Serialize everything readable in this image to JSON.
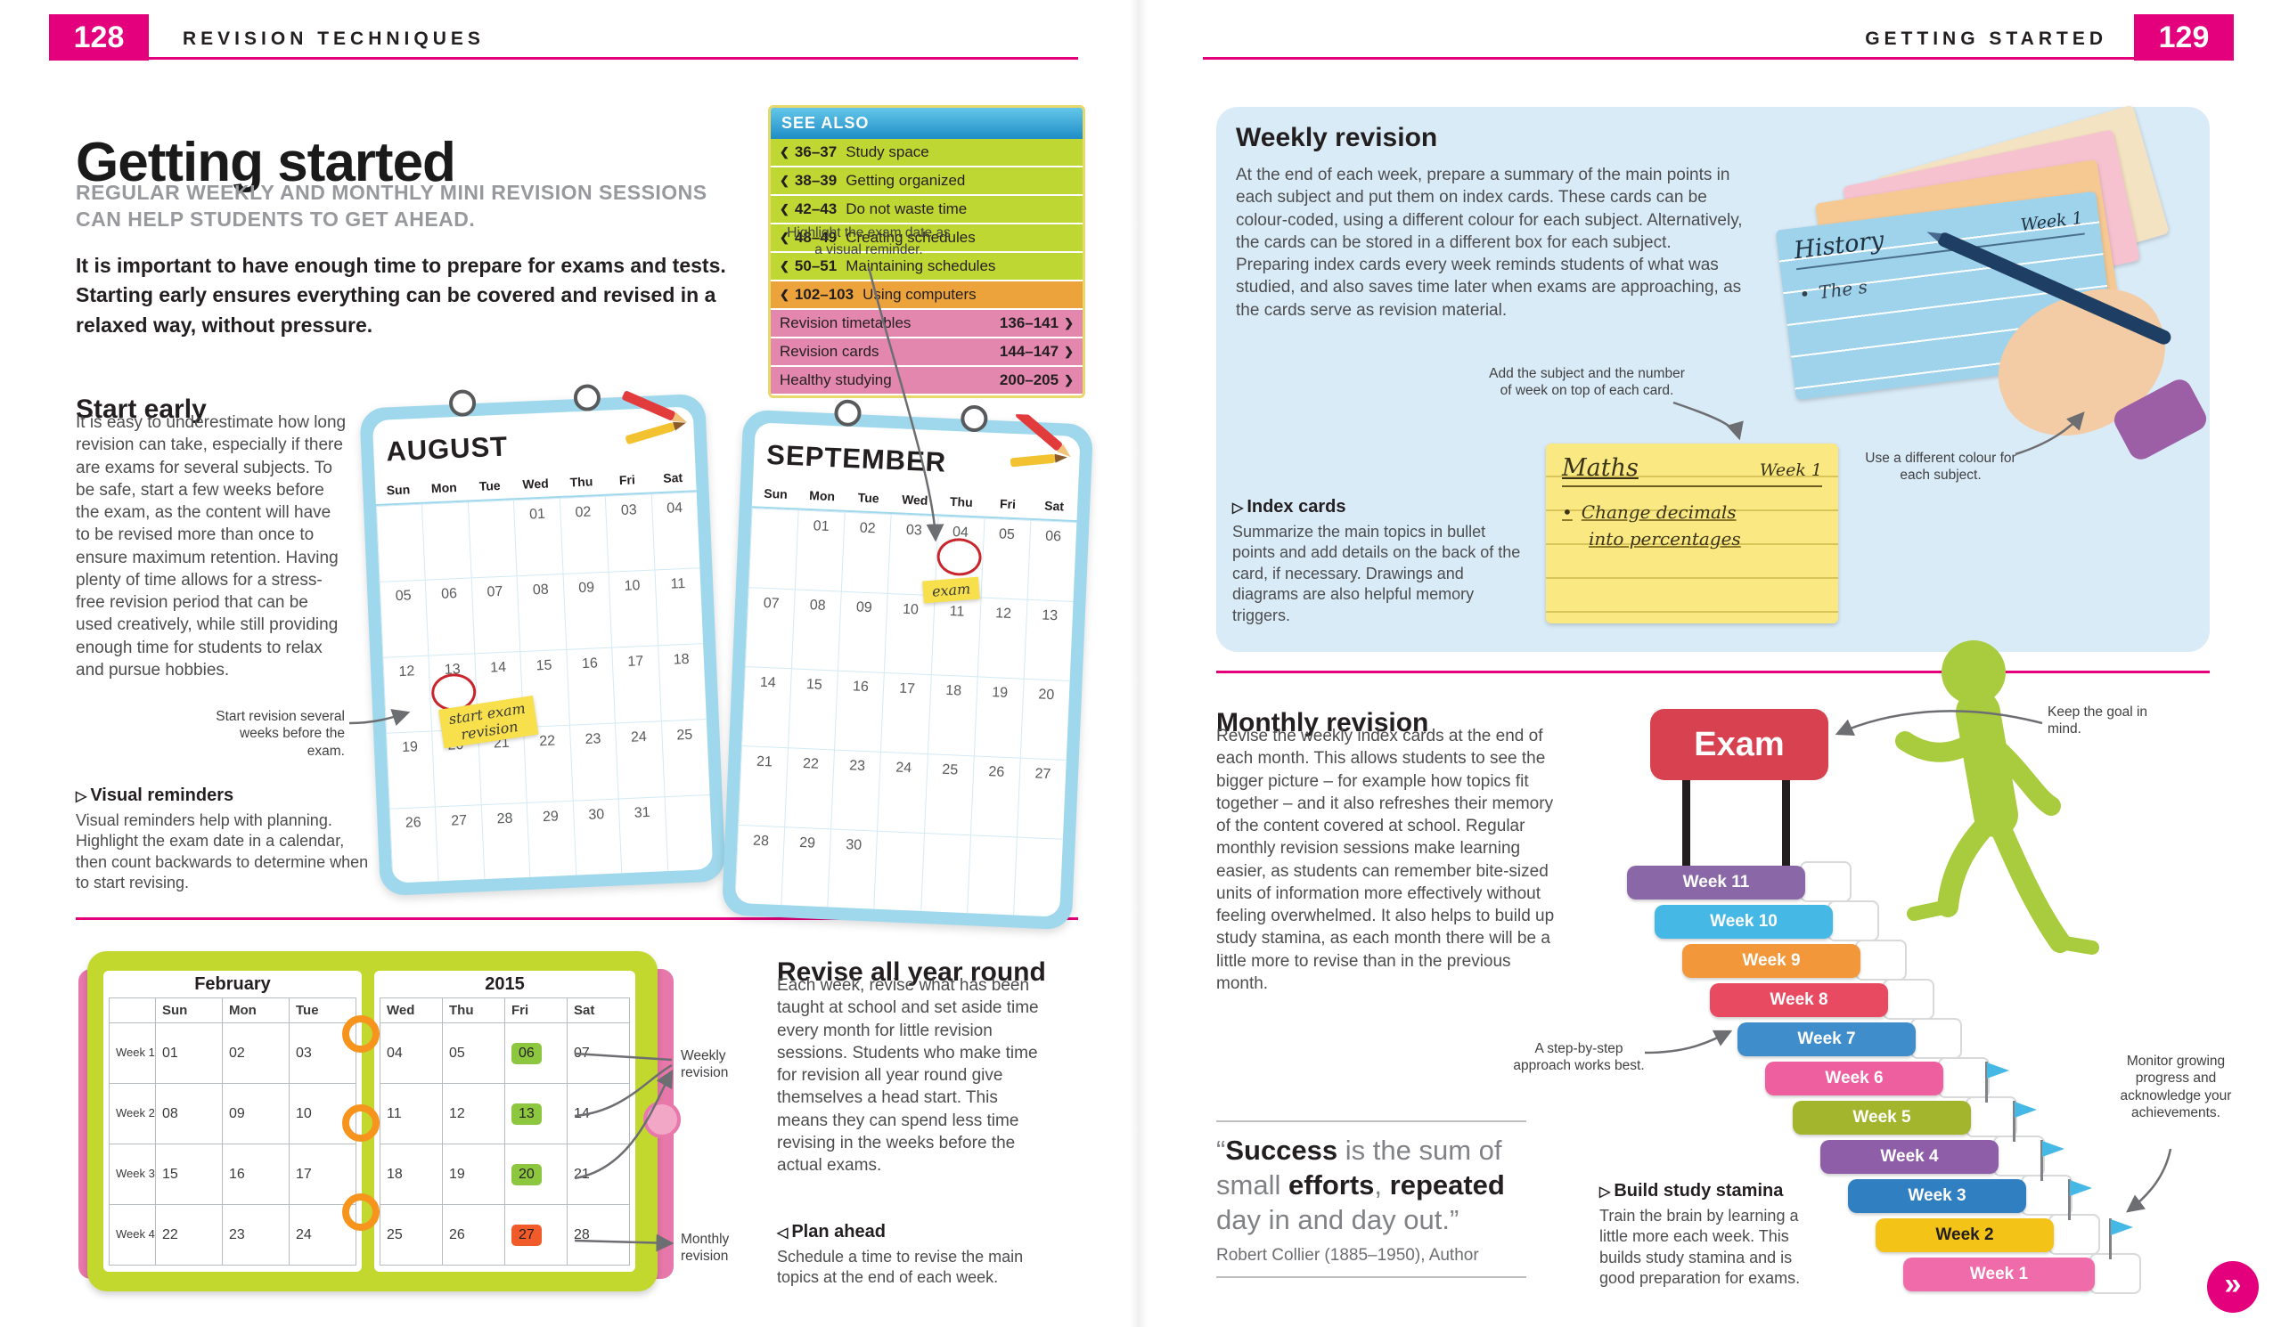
{
  "colors": {
    "accent_pink": "#e4007c",
    "see_also_green": "#bfd732",
    "see_also_orange": "#eda33c",
    "see_also_pink": "#e387ae",
    "calendar_blue": "#9fd8ec",
    "panel_blue": "#d9ebf7",
    "note_yellow": "#f7e04b",
    "weekly_highlight_green": "#8dc63f",
    "monthly_highlight_orange": "#f15a29",
    "exam_red": "#d8414f",
    "figure_green": "#a8cc3d",
    "flag_blue": "#45b8e6"
  },
  "header": {
    "left_page_number": "128",
    "left_section": "REVISION TECHNIQUES",
    "right_section": "GETTING STARTED",
    "right_page_number": "129"
  },
  "left_page": {
    "title": "Getting started",
    "standfirst": "REGULAR WEEKLY AND MONTHLY MINI REVISION SESSIONS CAN HELP STUDENTS TO GET AHEAD.",
    "intro": "It is important to have enough time to prepare for exams and tests. Starting early ensures everything can be covered and revised in a relaxed way, without pressure.",
    "see_also": {
      "title": "SEE ALSO",
      "back_chevron": "❮",
      "forward_chevron": "❯",
      "back_links": [
        {
          "pages": "36–37",
          "label": "Study space"
        },
        {
          "pages": "38–39",
          "label": "Getting organized"
        },
        {
          "pages": "42–43",
          "label": "Do not waste time"
        },
        {
          "pages": "48–49",
          "label": "Creating schedules"
        },
        {
          "pages": "50–51",
          "label": "Maintaining schedules"
        },
        {
          "pages": "102–103",
          "label": "Using computers",
          "color": "#eda33c"
        }
      ],
      "forward_links": [
        {
          "label": "Revision timetables",
          "pages": "136–141"
        },
        {
          "label": "Revision cards",
          "pages": "144–147"
        },
        {
          "label": "Healthy studying",
          "pages": "200–205"
        }
      ]
    },
    "start_early": {
      "heading": "Start early",
      "body": "It is easy to underestimate how long revision can take, especially if there are exams for several subjects. To be safe, start a few weeks before the exam, as the content will have to be revised more than once to ensure maximum retention. Having plenty of time allows for a stress-free revision period that can be used creatively, while still providing enough time for students to relax and pursue hobbies."
    },
    "calendar_annotations": {
      "highlight_callout": "Highlight the exam date as a visual reminder.",
      "start_revision_callout": "Start revision several weeks before the exam.",
      "august_note": "start exam\nrevision",
      "september_note": "exam"
    },
    "calendars": [
      {
        "month": "AUGUST",
        "weekdays": [
          "Sun",
          "Mon",
          "Tue",
          "Wed",
          "Thu",
          "Fri",
          "Sat"
        ],
        "weeks": [
          [
            "",
            "",
            "",
            "01",
            "02",
            "03",
            "04"
          ],
          [
            "05",
            "06",
            "07",
            "08",
            "09",
            "10",
            "11"
          ],
          [
            "12",
            "13",
            "14",
            "15",
            "16",
            "17",
            "18"
          ],
          [
            "19",
            "20",
            "21",
            "22",
            "23",
            "24",
            "25"
          ],
          [
            "26",
            "27",
            "28",
            "29",
            "30",
            "31",
            ""
          ]
        ],
        "circled": "13"
      },
      {
        "month": "SEPTEMBER",
        "weekdays": [
          "Sun",
          "Mon",
          "Tue",
          "Wed",
          "Thu",
          "Fri",
          "Sat"
        ],
        "weeks": [
          [
            "",
            "01",
            "02",
            "03",
            "04",
            "05",
            "06"
          ],
          [
            "07",
            "08",
            "09",
            "10",
            "11",
            "12",
            "13"
          ],
          [
            "14",
            "15",
            "16",
            "17",
            "18",
            "19",
            "20"
          ],
          [
            "21",
            "22",
            "23",
            "24",
            "25",
            "26",
            "27"
          ],
          [
            "28",
            "29",
            "30",
            "",
            "",
            "",
            ""
          ]
        ],
        "circled": "04"
      }
    ],
    "visual_reminders": {
      "marker": "▷",
      "heading": "Visual reminders",
      "body": "Visual reminders help with planning. Highlight the exam date in a calendar, then count backwards to determine when to start revising."
    },
    "planner": {
      "left_title": "February",
      "right_title": "2015",
      "left_columns": [
        "Sun",
        "Mon",
        "Tue"
      ],
      "right_columns": [
        "Wed",
        "Thu",
        "Fri",
        "Sat"
      ],
      "rows": [
        {
          "week": "Week 1",
          "left": [
            "01",
            "02",
            "03"
          ],
          "right": [
            "04",
            "05",
            "06",
            "07"
          ]
        },
        {
          "week": "Week 2",
          "left": [
            "08",
            "09",
            "10"
          ],
          "right": [
            "11",
            "12",
            "13",
            "14"
          ]
        },
        {
          "week": "Week 3",
          "left": [
            "15",
            "16",
            "17"
          ],
          "right": [
            "18",
            "19",
            "20",
            "21"
          ]
        },
        {
          "week": "Week 4",
          "left": [
            "22",
            "23",
            "24"
          ],
          "right": [
            "25",
            "26",
            "27",
            "28"
          ]
        }
      ],
      "weekly_highlights": [
        "06",
        "13",
        "20"
      ],
      "monthly_highlight": "27",
      "weekly_callout": "Weekly revision",
      "monthly_callout": "Monthly revision"
    },
    "revise_all_year": {
      "heading": "Revise all year round",
      "body": "Each week, revise what has been taught at school and set aside time every month for little revision sessions. Students who make time for revision all year round give themselves a head start. This means they can spend less time revising in the weeks before the actual exams."
    },
    "plan_ahead": {
      "marker": "◁",
      "heading": "Plan ahead",
      "body": "Schedule a time to revise the main topics at the end of each week."
    }
  },
  "right_page": {
    "weekly_revision": {
      "heading": "Weekly revision",
      "body": "At the end of each week, prepare a summary of the main points in each subject and put them on index cards. These cards can be colour-coded, using a different colour for each subject. Alternatively, the cards can be stored in a different box for each subject. Preparing index cards every week reminds students of what was studied, and also saves time later when exams are approaching, as the cards serve as revision material.",
      "add_subject_callout": "Add the subject and the number of week on top of each card.",
      "colour_callout": "Use a different colour for each subject.",
      "history_card": {
        "subject": "History",
        "week": "Week 1",
        "bullet": "•",
        "line": "The s"
      },
      "maths_card": {
        "subject": "Maths",
        "week": "Week 1",
        "bullet": "•",
        "line1": "Change decimals",
        "line2": "into percentages"
      },
      "index_cards_caption": {
        "marker": "▷",
        "heading": "Index cards",
        "body": "Summarize the main topics in bullet points and add details on the back of the card, if necessary. Drawings and diagrams are also helpful memory triggers."
      }
    },
    "monthly_revision": {
      "heading": "Monthly revision",
      "body": "Revise the weekly index cards at the end of each month. This allows students to see the bigger picture – for example how topics fit together – and it also refreshes their memory of the content covered at school. Regular monthly revision sessions make learning easier, as students can remember bite-sized units of information more effectively without feeling overwhelmed. It also helps to build up study stamina, as each month there will be a little more to revise than in the previous month."
    },
    "stairs": {
      "goal_label": "Exam",
      "steps": [
        {
          "label": "Week 11",
          "color": "#8a68a8",
          "text": "#ffffff"
        },
        {
          "label": "Week 10",
          "color": "#45b8e6",
          "text": "#ffffff"
        },
        {
          "label": "Week 9",
          "color": "#f2973a",
          "text": "#ffffff"
        },
        {
          "label": "Week 8",
          "color": "#e84a62",
          "text": "#ffffff"
        },
        {
          "label": "Week 7",
          "color": "#3f8ecb",
          "text": "#ffffff"
        },
        {
          "label": "Week 6",
          "color": "#ee5f9f",
          "text": "#ffffff"
        },
        {
          "label": "Week 5",
          "color": "#a2b52c",
          "text": "#ffffff"
        },
        {
          "label": "Week 4",
          "color": "#8e5fa8",
          "text": "#ffffff"
        },
        {
          "label": "Week 3",
          "color": "#2f7fc1",
          "text": "#ffffff"
        },
        {
          "label": "Week 2",
          "color": "#f3c317",
          "text": "#231f20"
        },
        {
          "label": "Week 1",
          "color": "#ef6ba9",
          "text": "#ffffff"
        }
      ],
      "callouts": {
        "goal": "Keep the goal in mind.",
        "step_by_step": "A step-by-step approach works best.",
        "monitor": "Monitor growing progress and acknowledge your achievements."
      }
    },
    "build_stamina": {
      "marker": "▷",
      "heading": "Build study stamina",
      "body": "Train the brain by learning a little more each week. This builds study stamina and is good preparation for exams."
    },
    "quote": {
      "segments": [
        {
          "text": "“",
          "bold": false
        },
        {
          "text": "Success",
          "bold": true
        },
        {
          "text": " is the sum of small ",
          "bold": false
        },
        {
          "text": "efforts",
          "bold": true
        },
        {
          "text": ", ",
          "bold": false
        },
        {
          "text": "repeated",
          "bold": true
        },
        {
          "text": " day in and day out.”",
          "bold": false
        }
      ],
      "attribution": "Robert Collier (1885–1950), Author"
    }
  },
  "footer": {
    "next_icon": "»"
  }
}
